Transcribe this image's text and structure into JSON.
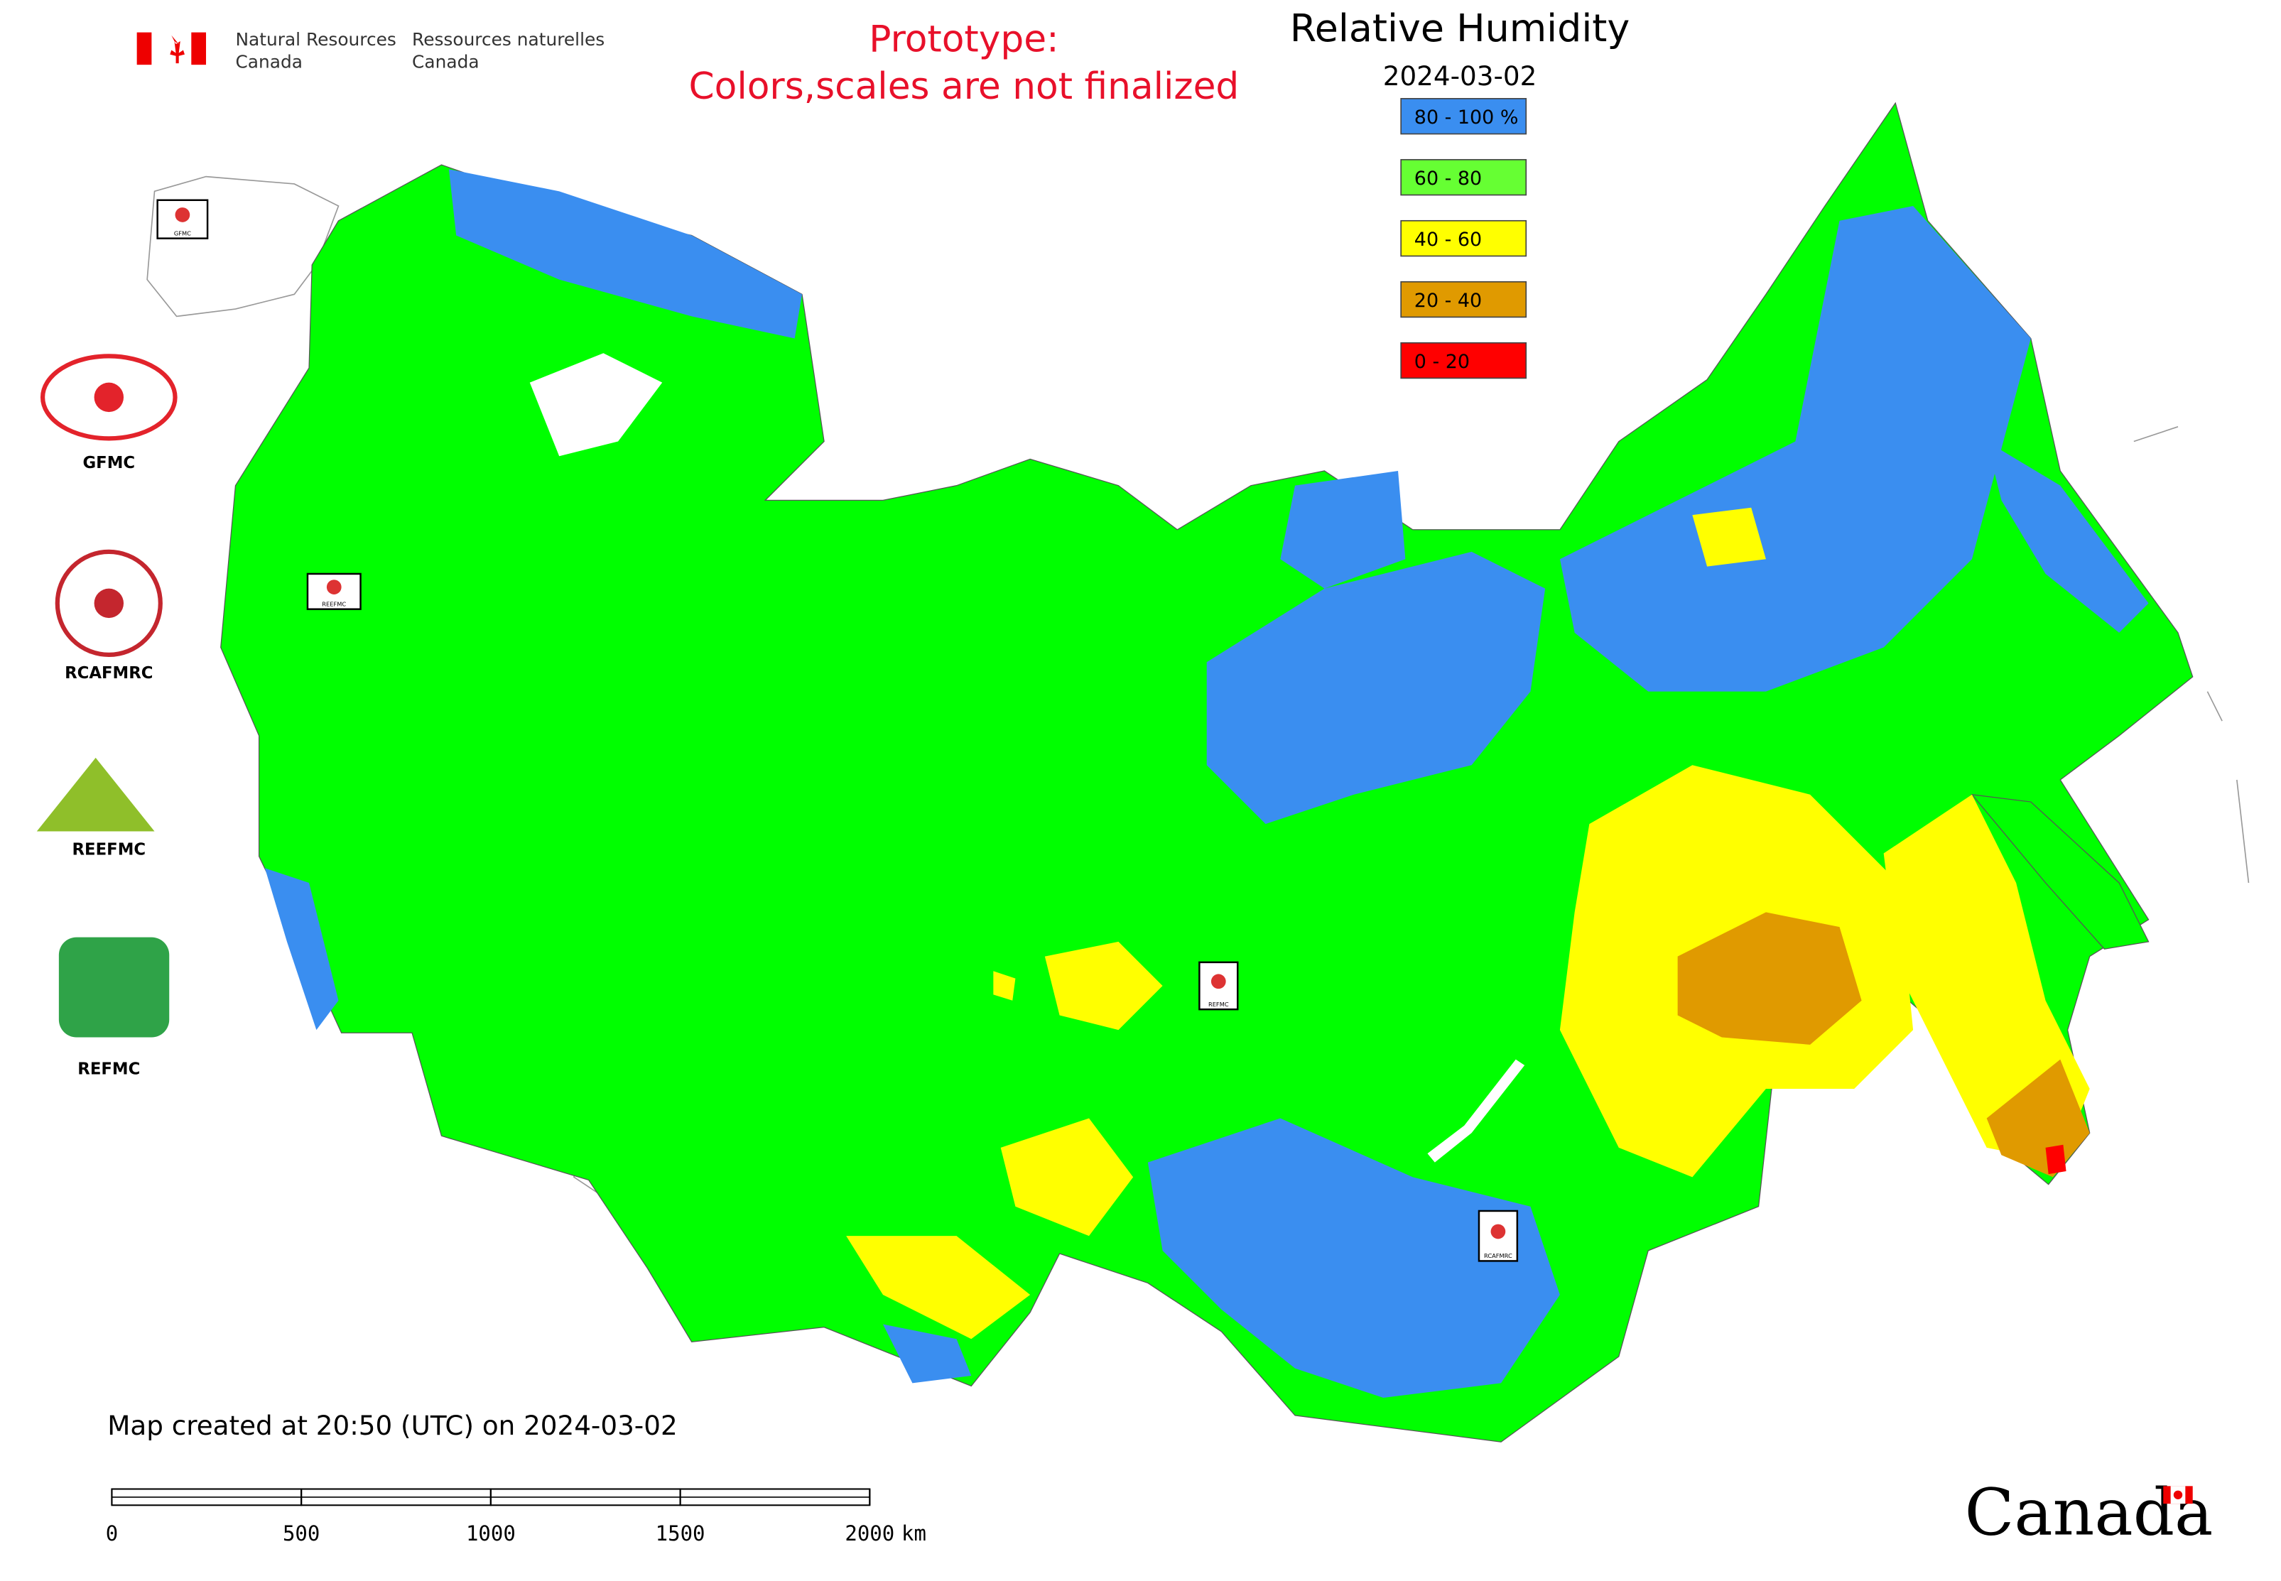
{
  "header": {
    "org_en": "Natural Resources",
    "org_en_2": "Canada",
    "org_fr": "Ressources naturelles",
    "org_fr_2": "Canada",
    "notice_1": "Prototype:",
    "notice_2": "Colors,scales are not finalized"
  },
  "title": "Relative Humidity",
  "date": "2024-03-02",
  "legend": [
    {
      "label": "80 - 100 %",
      "color": "#3a8ef0"
    },
    {
      "label": "60 - 80",
      "color": "#66ff33"
    },
    {
      "label": "40 - 60",
      "color": "#ffff00"
    },
    {
      "label": "20 - 40",
      "color": "#e09a00"
    },
    {
      "label": "0 - 20",
      "color": "#ff0000"
    }
  ],
  "logos": [
    "GFMC",
    "RCAFMRC",
    "REEFMC",
    "REFMC"
  ],
  "map_stamps": [
    "GFMC",
    "REEFMC",
    "REFMC",
    "RCAFMRC"
  ],
  "footer": {
    "created": "Map created at 20:50 (UTC) on 2024-03-02",
    "wordmark": "Canada"
  },
  "scale_bar": {
    "ticks": [
      0,
      500,
      1000,
      1500,
      2000
    ],
    "unit": "km"
  }
}
